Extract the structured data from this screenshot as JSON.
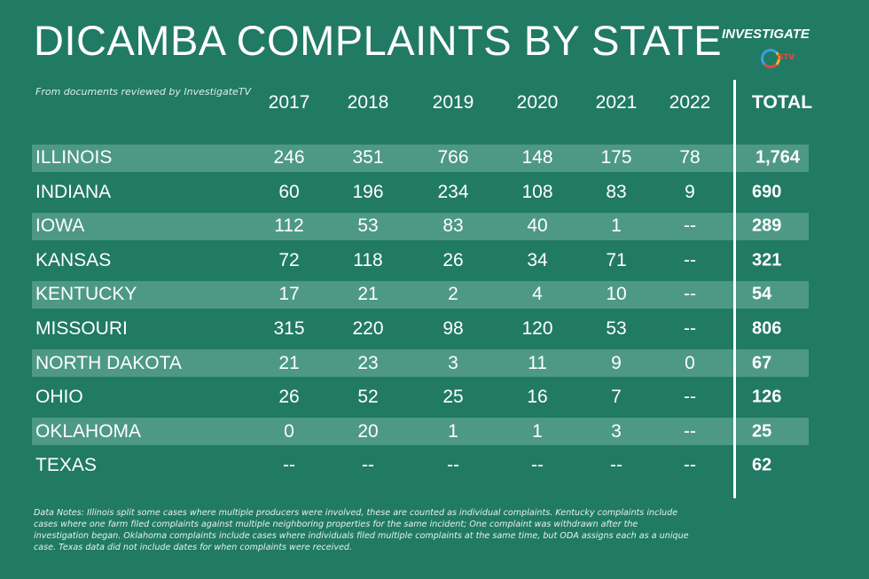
{
  "header": {
    "title": "DICAMBA COMPLAINTS BY STATE",
    "subtitle": "From documents reviewed by InvestigateTV",
    "logo": "INVESTIGATE",
    "logo_sub": "GTV"
  },
  "table": {
    "columns": [
      "2017",
      "2018",
      "2019",
      "2020",
      "2021",
      "2022",
      "TOTAL"
    ],
    "rows": [
      [
        "ILLINOIS",
        "246",
        "351",
        "766",
        "148",
        "175",
        "78",
        "1,764"
      ],
      [
        "INDIANA",
        "60",
        "196",
        "234",
        "108",
        "83",
        "9",
        "690"
      ],
      [
        "IOWA",
        "112",
        "53",
        "83",
        "40",
        "1",
        "--",
        "289"
      ],
      [
        "KANSAS",
        "72",
        "118",
        "26",
        "34",
        "71",
        "--",
        "321"
      ],
      [
        "KENTUCKY",
        "17",
        "21",
        "2",
        "4",
        "10",
        "--",
        "54"
      ],
      [
        "MISSOURI",
        "315",
        "220",
        "98",
        "120",
        "53",
        "--",
        "806"
      ],
      [
        "NORTH DAKOTA",
        "21",
        "23",
        "3",
        "11",
        "9",
        "0",
        "67"
      ],
      [
        "OHIO",
        "26",
        "52",
        "25",
        "16",
        "7",
        "--",
        "126"
      ],
      [
        "OKLAHOMA",
        "0",
        "20",
        "1",
        "1",
        "3",
        "--",
        "25"
      ],
      [
        "TEXAS",
        "--",
        "--",
        "--",
        "--",
        "--",
        "--",
        "62"
      ]
    ]
  },
  "notes": "Data Notes: Illinois split some cases where multiple producers were involved, these are counted as individual complaints. Kentucky complaints include cases where one farm filed complaints against multiple neighboring properties for the same incident; One complaint was withdrawn after the investigation began. Oklahoma complaints include cases where individuals filed multiple complaints at the same time, but ODA assigns each as a unique case. Texas data did not include dates for when complaints were received."
}
